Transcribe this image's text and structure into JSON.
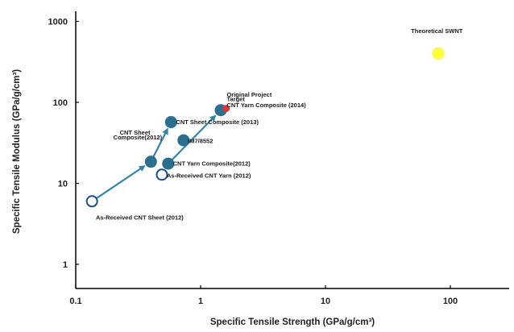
{
  "chart_data": {
    "type": "scatter",
    "xscale": "log",
    "yscale": "log",
    "xlim": [
      0.1,
      250
    ],
    "ylim": [
      0.5,
      1500
    ],
    "xlabel": "Specific Tensile Strength (GPa/g/cm³)",
    "ylabel": "Specific Tensile Modulus (GPa/g/cm³)",
    "x_ticks": [
      {
        "value": 0.1,
        "label": "0.1"
      },
      {
        "value": 1,
        "label": "1"
      },
      {
        "value": 10,
        "label": "10"
      },
      {
        "value": 100,
        "label": "100"
      }
    ],
    "y_ticks": [
      {
        "value": 1,
        "label": "1"
      },
      {
        "value": 10,
        "label": "10"
      },
      {
        "value": 100,
        "label": "100"
      },
      {
        "value": 1000,
        "label": "1000"
      }
    ],
    "colors": {
      "filled": "#2a6f8f",
      "open_stroke": "#1d4e8a",
      "arrow": "#2f86a8",
      "target": "#d8383a",
      "swnt": "#ffff33",
      "swnt_halo": "#f4f49a"
    },
    "points": [
      {
        "label": "As-Received CNT Sheet (2012)",
        "x": 0.135,
        "y": 6.0,
        "marker": "open"
      },
      {
        "label": "CNT Sheet Composite(2012)",
        "x": 0.4,
        "y": 18.5,
        "marker": "filled"
      },
      {
        "label": "CNT Sheet Composite (2013)",
        "x": 0.58,
        "y": 57,
        "marker": "filled"
      },
      {
        "label": "IM7/8552",
        "x": 0.73,
        "y": 34,
        "marker": "filled"
      },
      {
        "label": "As-Received CNT Yarn (2012)",
        "x": 0.49,
        "y": 12.8,
        "marker": "open"
      },
      {
        "label": "CNT Yarn Composite(2012)",
        "x": 0.55,
        "y": 17.5,
        "marker": "filled"
      },
      {
        "label": "CNT Yarn Composite (2014)",
        "x": 1.45,
        "y": 80,
        "marker": "filled"
      },
      {
        "label": "Original Project Target",
        "x": 1.6,
        "y": 84,
        "marker": "target"
      },
      {
        "label": "Theoretical SWNT",
        "x": 80,
        "y": 400,
        "marker": "swnt"
      }
    ],
    "arrows": [
      {
        "from": [
          0.135,
          6.0
        ],
        "to": [
          0.4,
          18.5
        ]
      },
      {
        "from": [
          0.4,
          18.5
        ],
        "to": [
          0.58,
          57
        ]
      },
      {
        "from": [
          0.55,
          17.5
        ],
        "to": [
          1.45,
          80
        ]
      }
    ],
    "annotations": [
      {
        "text": "Theoretical SWNT",
        "x": 78,
        "y": 720,
        "anchor": "middle"
      },
      {
        "text": "Original Project",
        "x": 1.62,
        "y": 118,
        "anchor": "start"
      },
      {
        "text": "Target",
        "x": 1.62,
        "y": 103,
        "anchor": "start"
      },
      {
        "text": "CNT Yarn Composite (2014)",
        "x": 1.62,
        "y": 87,
        "anchor": "start"
      },
      {
        "text": "CNT Sheet Composite (2013)",
        "x": 0.635,
        "y": 54,
        "anchor": "start"
      },
      {
        "text": "IM7/8552",
        "x": 0.79,
        "y": 31.5,
        "anchor": "start"
      },
      {
        "text": "CNT Sheet",
        "x": 0.225,
        "y": 40,
        "anchor": "start"
      },
      {
        "text": "Composite(2012)",
        "x": 0.2,
        "y": 35,
        "anchor": "start"
      },
      {
        "text": "CNT Yarn Composite(2012)",
        "x": 0.6,
        "y": 16.6,
        "anchor": "start"
      },
      {
        "text": "As-Received CNT Yarn (2012)",
        "x": 0.535,
        "y": 11.7,
        "anchor": "start"
      },
      {
        "text": "As-Received CNT Sheet (2012)",
        "x": 0.145,
        "y": 3.55,
        "anchor": "start"
      }
    ]
  }
}
